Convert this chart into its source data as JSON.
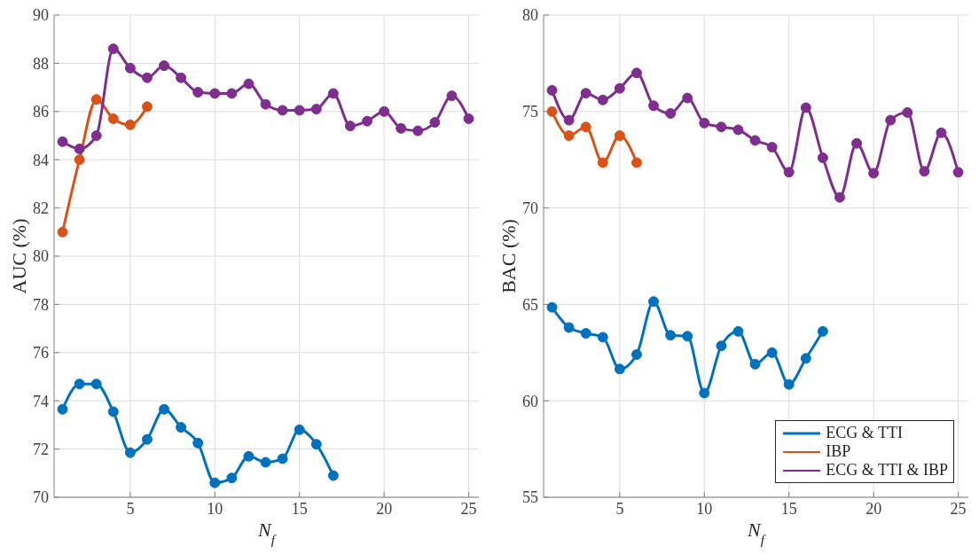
{
  "chart_data": [
    {
      "type": "line",
      "xlabel": "N$_{f}$",
      "ylabel": "AUC  (%)",
      "xlim": [
        0.5,
        25.6
      ],
      "xticks": [
        5,
        10,
        15,
        20,
        25
      ],
      "ylim": [
        70,
        90
      ],
      "yticks": [
        70,
        72,
        74,
        76,
        78,
        80,
        82,
        84,
        86,
        88,
        90
      ],
      "grid": true,
      "legend": false,
      "marker": "circle",
      "x": [
        1,
        2,
        3,
        4,
        5,
        6,
        7,
        8,
        9,
        10,
        11,
        12,
        13,
        14,
        15,
        16,
        17,
        18,
        19,
        20,
        21,
        22,
        23,
        24,
        25
      ],
      "series": [
        {
          "color": "#0072bd",
          "values": [
            73.65,
            74.7,
            74.7,
            73.55,
            71.85,
            72.4,
            73.65,
            72.9,
            72.25,
            70.6,
            70.8,
            71.7,
            71.45,
            71.6,
            72.8,
            72.2,
            70.9,
            null,
            null,
            null,
            null,
            null,
            null,
            null,
            null
          ]
        },
        {
          "color": "#d95319",
          "values": [
            81.0,
            84.0,
            86.5,
            85.7,
            85.45,
            86.2,
            null,
            null,
            null,
            null,
            null,
            null,
            null,
            null,
            null,
            null,
            null,
            null,
            null,
            null,
            null,
            null,
            null,
            null,
            null
          ]
        },
        {
          "color": "#7e2f8e",
          "values": [
            84.75,
            84.45,
            85.0,
            88.6,
            87.8,
            87.4,
            87.9,
            87.4,
            86.8,
            86.75,
            86.75,
            87.15,
            86.3,
            86.05,
            86.05,
            86.1,
            86.75,
            85.4,
            85.6,
            86.0,
            85.3,
            85.2,
            85.55,
            86.65,
            85.7
          ]
        }
      ]
    },
    {
      "type": "line",
      "xlabel": "N$_{f}$",
      "ylabel": "BAC  (%)",
      "xlim": [
        0.5,
        25.6
      ],
      "xticks": [
        5,
        10,
        15,
        20,
        25
      ],
      "ylim": [
        55,
        80
      ],
      "yticks": [
        55,
        60,
        65,
        70,
        75,
        80
      ],
      "grid": true,
      "legend": "bottom right",
      "marker": "circle",
      "x": [
        1,
        2,
        3,
        4,
        5,
        6,
        7,
        8,
        9,
        10,
        11,
        12,
        13,
        14,
        15,
        16,
        17,
        18,
        19,
        20,
        21,
        22,
        23,
        24,
        25
      ],
      "series": [
        {
          "name": "ECG & TTI",
          "color": "#0072bd",
          "values": [
            64.85,
            63.8,
            63.5,
            63.3,
            61.65,
            62.4,
            65.15,
            63.4,
            63.35,
            60.4,
            62.85,
            63.6,
            61.9,
            62.5,
            60.85,
            62.2,
            63.6,
            null,
            null,
            null,
            null,
            null,
            null,
            null,
            null
          ]
        },
        {
          "name": "IBP",
          "color": "#d95319",
          "values": [
            75.0,
            73.75,
            74.2,
            72.35,
            73.75,
            72.35,
            null,
            null,
            null,
            null,
            null,
            null,
            null,
            null,
            null,
            null,
            null,
            null,
            null,
            null,
            null,
            null,
            null,
            null,
            null
          ]
        },
        {
          "name": "ECG & TTI & IBP",
          "color": "#7e2f8e",
          "values": [
            76.1,
            74.55,
            75.95,
            75.6,
            76.2,
            77.0,
            75.3,
            74.9,
            75.7,
            74.4,
            74.2,
            74.05,
            73.5,
            73.15,
            71.85,
            75.2,
            72.6,
            70.55,
            73.35,
            71.8,
            74.55,
            74.95,
            71.9,
            73.9,
            71.85
          ]
        }
      ]
    }
  ]
}
